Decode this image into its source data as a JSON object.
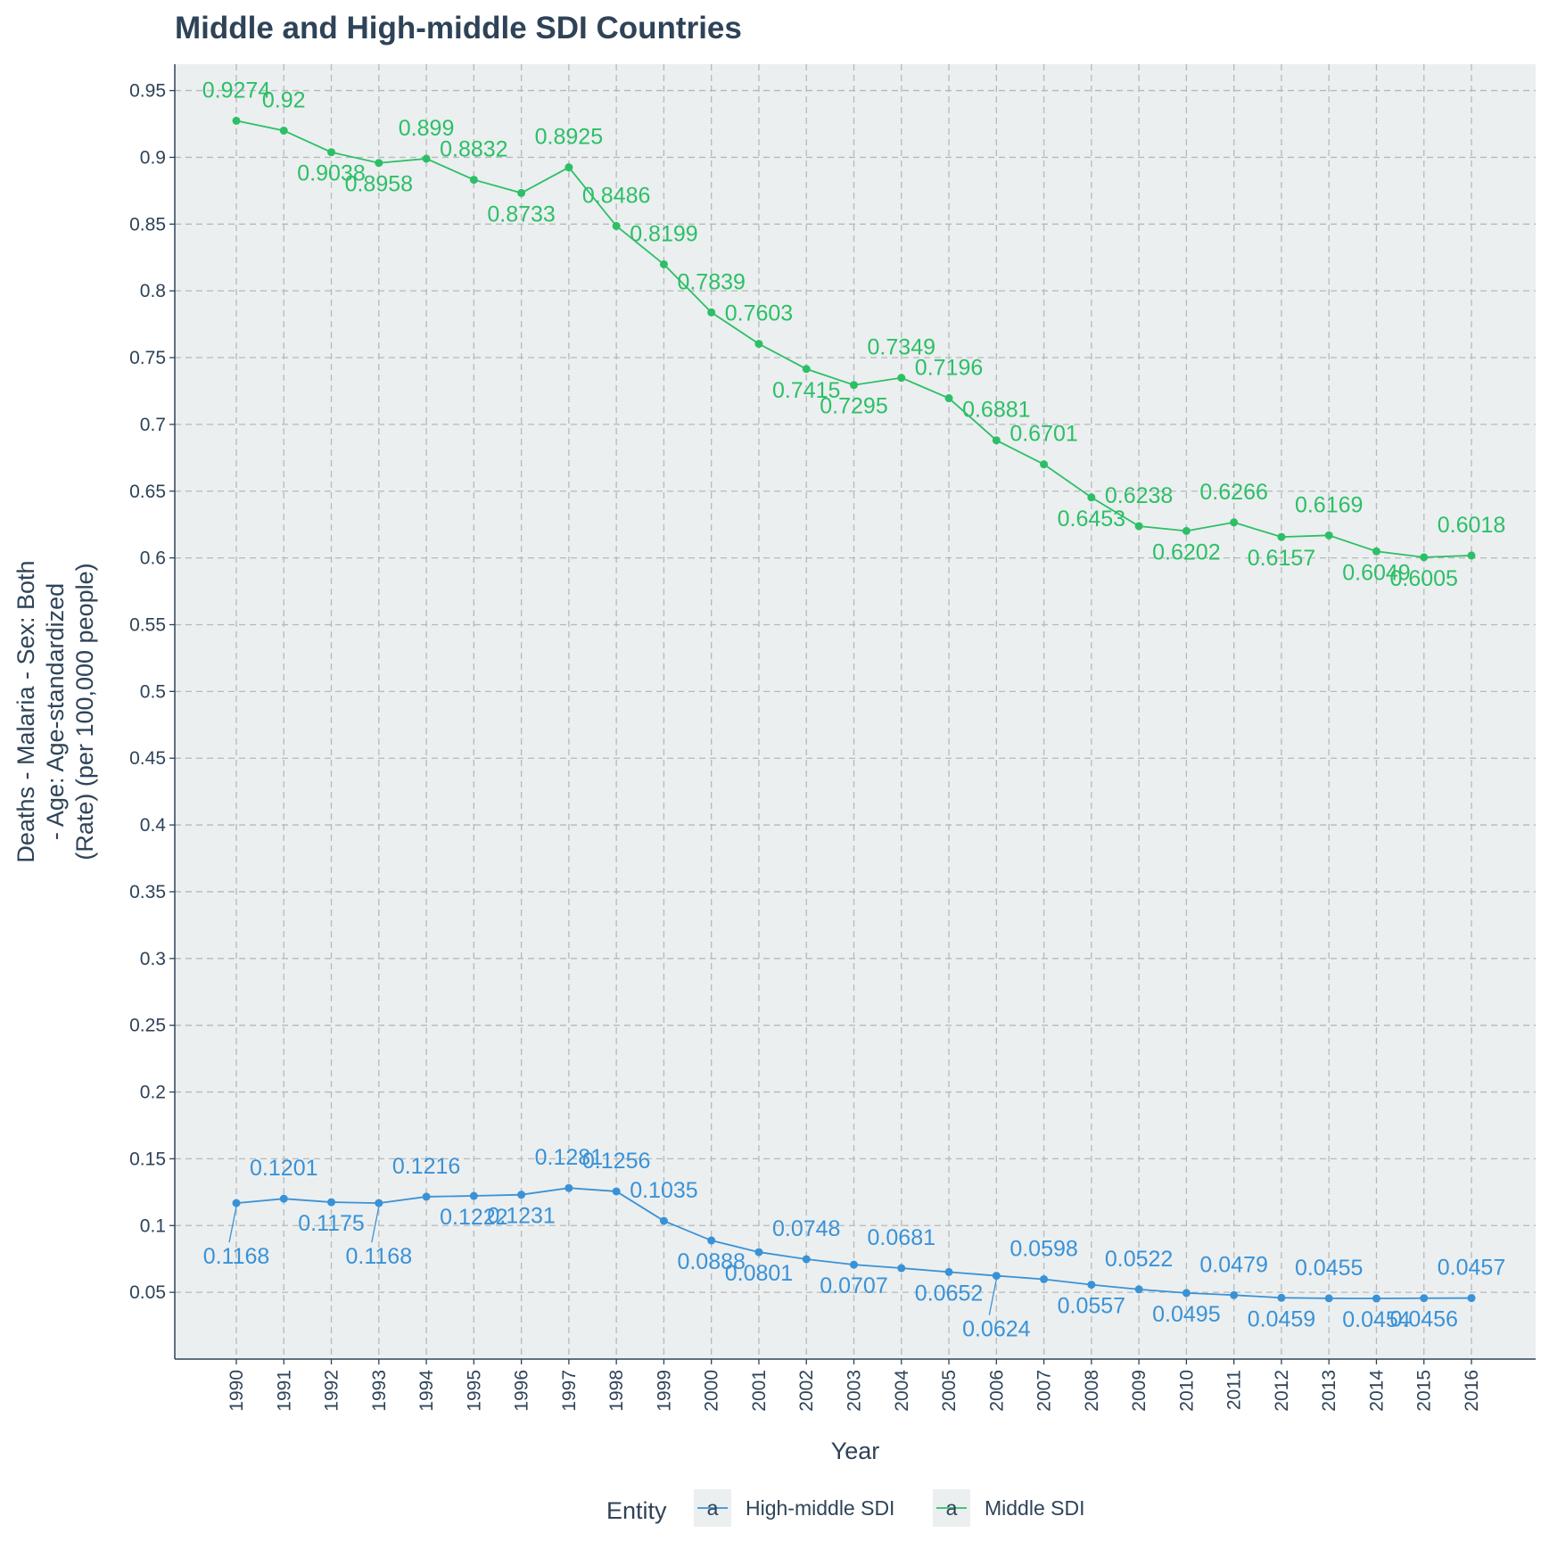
{
  "chart_data": {
    "type": "line",
    "title": "Middle and High-middle SDI Countries",
    "xlabel": "Year",
    "ylabel_lines": [
      "Deaths - Malaria - Sex: Both",
      "- Age: Age-standardized",
      "(Rate) (per 100,000 people)"
    ],
    "x": [
      1990,
      1991,
      1992,
      1993,
      1994,
      1995,
      1996,
      1997,
      1998,
      1999,
      2000,
      2001,
      2002,
      2003,
      2004,
      2005,
      2006,
      2007,
      2008,
      2009,
      2010,
      2011,
      2012,
      2013,
      2014,
      2015,
      2016
    ],
    "x_tick_labels": [
      "1990",
      "1991",
      "1992",
      "1993",
      "1994",
      "1995",
      "1996",
      "1997",
      "1998",
      "1999",
      "2000",
      "2001",
      "2002",
      "2003",
      "2004",
      "2005",
      "2006",
      "2007",
      "2008",
      "2009",
      "2010",
      "2011",
      "2012",
      "2013",
      "2014",
      "2015",
      "2016"
    ],
    "ylim": [
      0.0,
      0.97
    ],
    "y_ticks": [
      0.05,
      0.1,
      0.15,
      0.2,
      0.25,
      0.3,
      0.35,
      0.4,
      0.45,
      0.5,
      0.55,
      0.6,
      0.65,
      0.7,
      0.75,
      0.8,
      0.85,
      0.9,
      0.95
    ],
    "y_tick_labels": [
      "0.05",
      "0.1",
      "0.15",
      "0.2",
      "0.25",
      "0.3",
      "0.35",
      "0.4",
      "0.45",
      "0.5",
      "0.55",
      "0.6",
      "0.65",
      "0.7",
      "0.75",
      "0.8",
      "0.85",
      "0.9",
      "0.95"
    ],
    "grid": true,
    "legend": {
      "title": "Entity",
      "placement": "bottom",
      "glyph": "a"
    },
    "series": [
      {
        "name": "High-middle SDI",
        "color": "#3a92d6",
        "values": [
          0.1168,
          0.1201,
          0.1175,
          0.1168,
          0.1216,
          0.1222,
          0.1231,
          0.1281,
          0.1256,
          0.1035,
          0.0888,
          0.0801,
          0.0748,
          0.0707,
          0.0681,
          0.0652,
          0.0624,
          0.0598,
          0.0557,
          0.0522,
          0.0495,
          0.0479,
          0.0459,
          0.0455,
          0.0454,
          0.0456,
          0.0457
        ],
        "labels": [
          "0.1168",
          "0.1201",
          "0.1175",
          "0.1168",
          "0.1216",
          "0.1222",
          "0.1231",
          "0.1281",
          "0.1256",
          "0.1035",
          "0.0888",
          "0.0801",
          "0.0748",
          "0.0707",
          "0.0681",
          "0.0652",
          "0.0624",
          "0.0598",
          "0.0557",
          "0.0522",
          "0.0495",
          "0.0479",
          "0.0459",
          "0.0455",
          "0.0454",
          "0.0456",
          "0.0457"
        ]
      },
      {
        "name": "Middle SDI",
        "color": "#2dbf66",
        "values": [
          0.9274,
          0.92,
          0.9038,
          0.8958,
          0.899,
          0.8832,
          0.8733,
          0.8925,
          0.8486,
          0.8199,
          0.7839,
          0.7603,
          0.7415,
          0.7295,
          0.7349,
          0.7196,
          0.6881,
          0.6701,
          0.6453,
          0.6238,
          0.6202,
          0.6266,
          0.6157,
          0.6169,
          0.6049,
          0.6005,
          0.6018
        ],
        "labels": [
          "0.9274",
          "0.92",
          "0.9038",
          "0.8958",
          "0.899",
          "0.8832",
          "0.8733",
          "0.8925",
          "0.8486",
          "0.8199",
          "0.7839",
          "0.7603",
          "0.7415",
          "0.7295",
          "0.7349",
          "0.7196",
          "0.6881",
          "0.6701",
          "0.6453",
          "0.6238",
          "0.6202",
          "0.6266",
          "0.6157",
          "0.6169",
          "0.6049",
          "0.6005",
          "0.6018"
        ]
      }
    ]
  }
}
